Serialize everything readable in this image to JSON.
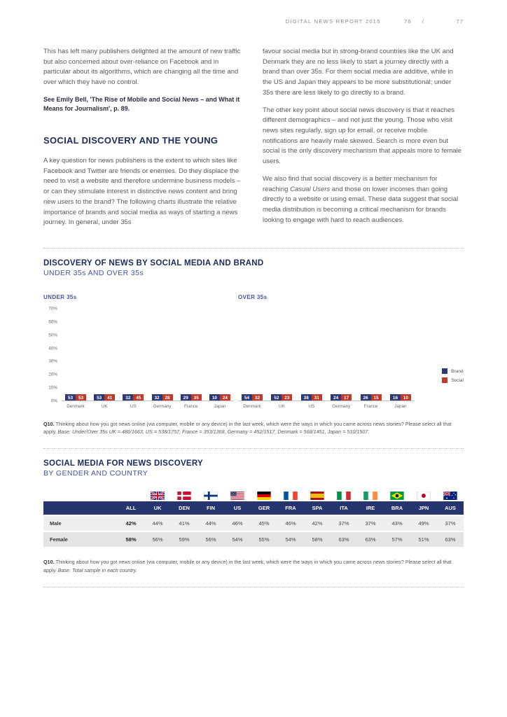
{
  "header": {
    "report_title": "DIGITAL NEWS REPORT 2015",
    "page_left": "76",
    "separator": "/",
    "page_right": "77"
  },
  "intro": {
    "para1": "This has left many publishers delighted at the amount of new traffic but also concerned about over-reliance on Facebook and in particular about its algorithms, which are changing all the time and over which they have no control.",
    "footnote_ref": "See Emily Bell, 'The Rise of Mobile and Social News – and What it Means for Journalism', p. 89.",
    "section_title": "SOCIAL DISCOVERY AND THE YOUNG",
    "para2": "A key question for news publishers is the extent to which sites like Facebook and Twitter are friends or enemies. Do they displace the need to visit a website and therefore undermine business models – or can they stimulate interest in distinctive news content and bring new users to the brand? The following charts illustrate the relative importance of brands and social media as ways of starting a news journey. In general, under 35s",
    "para3": "favour social media but in strong-brand countries like the UK and Denmark they are no less likely to start a journey directly with a brand than over 35s. For them social media are additive, while in the US and Japan they appears to be more substitutional; under 35s there are less likely to go directly to a brand.",
    "para4": "The other key point about social news discovery is that it reaches different demographics – and not just the young. Those who visit news sites regularly, sign up for email, or receive mobile notifications are heavily male skewed. Search is more even but social is the only discovery mechanism that appeals more to female users.",
    "para5_pre": "We also find that social discovery is a better mechanism for reaching ",
    "para5_italic": "Casual Users",
    "para5_post": " and those on lower incomes than going directly to a website or using email. These data suggest that social media distribution is becoming a critical mechanism for brands looking to engage with hard to reach audiences."
  },
  "chart_section": {
    "title": "DISCOVERY OF NEWS BY SOCIAL MEDIA AND BRAND",
    "subtitle": "UNDER 35s AND OVER 35s",
    "footnote_label": "Q10.",
    "footnote_text": " Thinking about how you got news online (via computer, mobile or any device) in the last week, which were the ways in which you came across news stories? Please select all that apply. ",
    "footnote_base": "Base: Under/Over 35s UK = 486/1663, US = 538/1757, France = 353/1368, Germany = 452/1517, Denmark = 568/1451, Japan = 510/1507."
  },
  "chart_data": [
    {
      "type": "bar",
      "title": "UNDER 35s",
      "categories": [
        "Denmark",
        "UK",
        "US",
        "Germany",
        "France",
        "Japan"
      ],
      "series": [
        {
          "name": "Brand",
          "color": "#2b3a74",
          "values": [
            53,
            53,
            32,
            32,
            29,
            10
          ]
        },
        {
          "name": "Social",
          "color": "#c03a2b",
          "values": [
            53,
            41,
            45,
            28,
            35,
            24
          ]
        }
      ],
      "ylim": [
        0,
        70
      ],
      "yticks": [
        "0%",
        "10%",
        "20%",
        "30%",
        "40%",
        "50%",
        "60%",
        "70%"
      ],
      "legend_position": "right",
      "grid": false
    },
    {
      "type": "bar",
      "title": "OVER 35s",
      "categories": [
        "Denmark",
        "UK",
        "US",
        "Germany",
        "France",
        "Japan"
      ],
      "series": [
        {
          "name": "Brand",
          "color": "#2b3a74",
          "values": [
            54,
            52,
            38,
            24,
            26,
            16
          ]
        },
        {
          "name": "Social",
          "color": "#c03a2b",
          "values": [
            32,
            23,
            31,
            17,
            15,
            10
          ]
        }
      ],
      "ylim": [
        0,
        70
      ],
      "grid": false
    }
  ],
  "table_section": {
    "title": "SOCIAL MEDIA FOR NEWS DISCOVERY",
    "subtitle": "BY GENDER AND COUNTRY",
    "footnote_label": "Q10.",
    "footnote_text": " Thinking about how you got news online (via computer, mobile or any device) in the last week, which were the ways in which you came across news stories? Please select all that apply. ",
    "footnote_base": "Base: Total sample in each country."
  },
  "gender_table": {
    "header_bg": "#26356e",
    "columns": [
      {
        "label": "ALL",
        "flag": null
      },
      {
        "label": "UK",
        "flag": "uk"
      },
      {
        "label": "DEN",
        "flag": "den"
      },
      {
        "label": "FIN",
        "flag": "fin"
      },
      {
        "label": "US",
        "flag": "us"
      },
      {
        "label": "GER",
        "flag": "ger"
      },
      {
        "label": "FRA",
        "flag": "fra"
      },
      {
        "label": "SPA",
        "flag": "spa"
      },
      {
        "label": "ITA",
        "flag": "ita"
      },
      {
        "label": "IRE",
        "flag": "ire"
      },
      {
        "label": "BRA",
        "flag": "bra"
      },
      {
        "label": "JPN",
        "flag": "jpn"
      },
      {
        "label": "AUS",
        "flag": "aus"
      }
    ],
    "rows": [
      {
        "label": "Male",
        "values": [
          "42%",
          "44%",
          "41%",
          "44%",
          "46%",
          "45%",
          "46%",
          "42%",
          "37%",
          "37%",
          "43%",
          "49%",
          "37%"
        ]
      },
      {
        "label": "Female",
        "values": [
          "58%",
          "56%",
          "59%",
          "56%",
          "54%",
          "55%",
          "54%",
          "58%",
          "63%",
          "63%",
          "57%",
          "51%",
          "63%"
        ]
      }
    ]
  }
}
